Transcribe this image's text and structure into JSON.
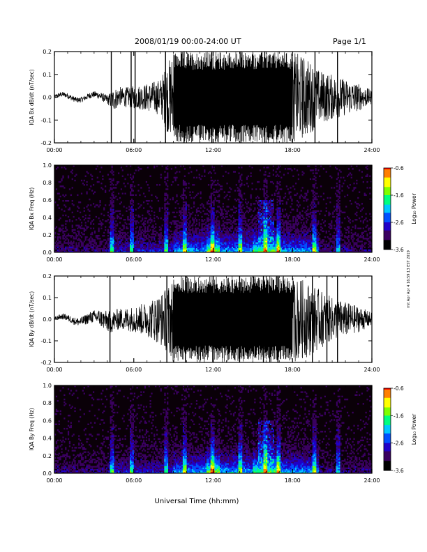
{
  "header": {
    "title": "2008/01/19  00:00-24:00 UT",
    "page": "Page 1/1"
  },
  "footer": {
    "xlabel": "Universal Time (hh:mm)"
  },
  "side_note": "mit Apr Apr 4 16:59:13 EST 2019",
  "colors": {
    "trace": "#000000",
    "spectrogram_background": "#0a0008",
    "colormap": [
      "#000000",
      "#3a0060",
      "#2000c8",
      "#0050ff",
      "#00c8ff",
      "#00ff80",
      "#80ff00",
      "#ffff00",
      "#ff8000",
      "#ff0000"
    ]
  },
  "chart_data": [
    {
      "type": "line",
      "name": "bx_trace",
      "ylabel": "IQA Bx dB/dt (nT/sec)",
      "xlim": [
        0,
        24
      ],
      "ylim": [
        -0.2,
        0.2
      ],
      "x_ticks": [
        "00:00",
        "06:00",
        "12:00",
        "18:00",
        "24:00"
      ],
      "y_ticks": [
        "0.2",
        "0.1",
        "0.0",
        "-0.1",
        "-0.2"
      ],
      "y_tick_values": [
        0.2,
        0.1,
        0.0,
        -0.1,
        -0.2
      ],
      "envelope": {
        "hours": [
          0,
          1,
          2,
          3,
          4,
          4.5,
          5,
          6,
          7,
          8,
          8.5,
          9,
          10,
          11,
          12,
          13,
          14,
          15,
          16,
          17,
          18,
          19,
          20,
          21,
          22,
          23,
          24
        ],
        "amplitude": [
          0.01,
          0.012,
          0.012,
          0.014,
          0.02,
          0.05,
          0.04,
          0.05,
          0.06,
          0.08,
          0.15,
          0.2,
          0.2,
          0.2,
          0.2,
          0.2,
          0.2,
          0.2,
          0.2,
          0.2,
          0.2,
          0.18,
          0.12,
          0.1,
          0.08,
          0.06,
          0.03
        ]
      },
      "spikes_hours": [
        4.3,
        5.8,
        6.1,
        8.4,
        9.8,
        11.9,
        14.1,
        15.9,
        19.7,
        21.4
      ]
    },
    {
      "type": "heatmap",
      "name": "bx_spectrogram",
      "ylabel": "IQA Bx Freq (Hz)",
      "xlim": [
        0,
        24
      ],
      "ylim": [
        0,
        1.0
      ],
      "x_ticks": [
        "00:00",
        "06:00",
        "12:00",
        "18:00",
        "24:00"
      ],
      "y_ticks": [
        "1.0",
        "0.8",
        "0.6",
        "0.4",
        "0.2",
        "0.0"
      ],
      "y_tick_values": [
        1.0,
        0.8,
        0.6,
        0.4,
        0.2,
        0.0
      ],
      "colorbar": {
        "label": "Log₁₀ Power",
        "ticks": [
          "-0.6",
          "-1.6",
          "-2.6",
          "-3.6"
        ],
        "tick_values": [
          -0.6,
          -1.6,
          -2.6,
          -3.6
        ]
      }
    },
    {
      "type": "line",
      "name": "by_trace",
      "ylabel": "IQA By dB/dt (nT/sec)",
      "xlim": [
        0,
        24
      ],
      "ylim": [
        -0.2,
        0.2
      ],
      "x_ticks": [
        "00:00",
        "06:00",
        "12:00",
        "18:00",
        "24:00"
      ],
      "y_ticks": [
        "0.2",
        "0.1",
        "0.0",
        "-0.1",
        "-0.2"
      ],
      "y_tick_values": [
        0.2,
        0.1,
        0.0,
        -0.1,
        -0.2
      ],
      "envelope": {
        "hours": [
          0,
          1,
          2,
          3,
          4,
          5,
          6,
          7,
          8,
          8.5,
          9,
          10,
          11,
          12,
          13,
          14,
          15,
          16,
          17,
          18,
          19,
          20,
          21,
          22,
          23,
          24
        ],
        "amplitude": [
          0.01,
          0.015,
          0.02,
          0.03,
          0.05,
          0.05,
          0.06,
          0.08,
          0.12,
          0.15,
          0.2,
          0.2,
          0.2,
          0.2,
          0.2,
          0.2,
          0.2,
          0.2,
          0.2,
          0.2,
          0.18,
          0.14,
          0.1,
          0.08,
          0.06,
          0.03
        ]
      },
      "spikes_hours": [
        4.2,
        8.5,
        9.9,
        12.0,
        14.0,
        15.8,
        16.9,
        19.5,
        20.6,
        21.4
      ]
    },
    {
      "type": "heatmap",
      "name": "by_spectrogram",
      "ylabel": "IQA By Freq (Hz)",
      "xlim": [
        0,
        24
      ],
      "ylim": [
        0,
        1.0
      ],
      "x_ticks": [
        "00:00",
        "06:00",
        "12:00",
        "18:00",
        "24:00"
      ],
      "y_ticks": [
        "1.0",
        "0.8",
        "0.6",
        "0.4",
        "0.2",
        "0.0"
      ],
      "y_tick_values": [
        1.0,
        0.8,
        0.6,
        0.4,
        0.2,
        0.0
      ],
      "colorbar": {
        "label": "Log₁₀ Power",
        "ticks": [
          "-0.6",
          "-1.6",
          "-2.6",
          "-3.6"
        ],
        "tick_values": [
          -0.6,
          -1.6,
          -2.6,
          -3.6
        ]
      }
    }
  ]
}
